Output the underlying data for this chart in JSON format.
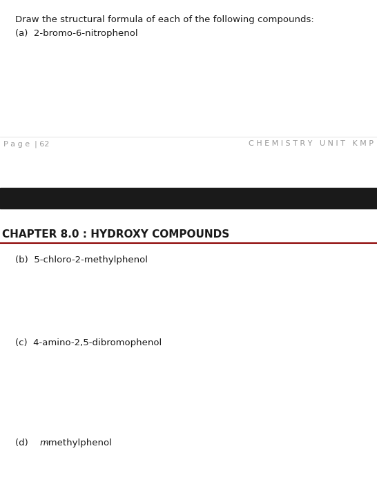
{
  "bg_color": "#ffffff",
  "intro_text": "Draw the structural formula of each of the following compounds:",
  "item_a": "(a)  2-bromo-6-nitrophenol",
  "page_left": "P a g e  | 62",
  "page_right": "C H E M I S T R Y   U N I T   K M P",
  "black_bar_color": "#1a1a1a",
  "chapter_title": "CHAPTER 8.0 : HYDROXY COMPOUNDS",
  "chapter_line_color": "#8B0000",
  "item_b": "(b)  5-chloro-2-methylphenol",
  "item_c": "(c)  4-amino-2,5-dibromophenol",
  "item_d_prefix": "(d)   ",
  "item_d_italic": "m",
  "item_d_suffix": "-methylphenol",
  "intro_fontsize": 9.5,
  "item_fontsize": 9.5,
  "page_fontsize": 8.0,
  "chapter_fontsize": 11.0,
  "text_color": "#1a1a1a",
  "gray_color": "#999999"
}
